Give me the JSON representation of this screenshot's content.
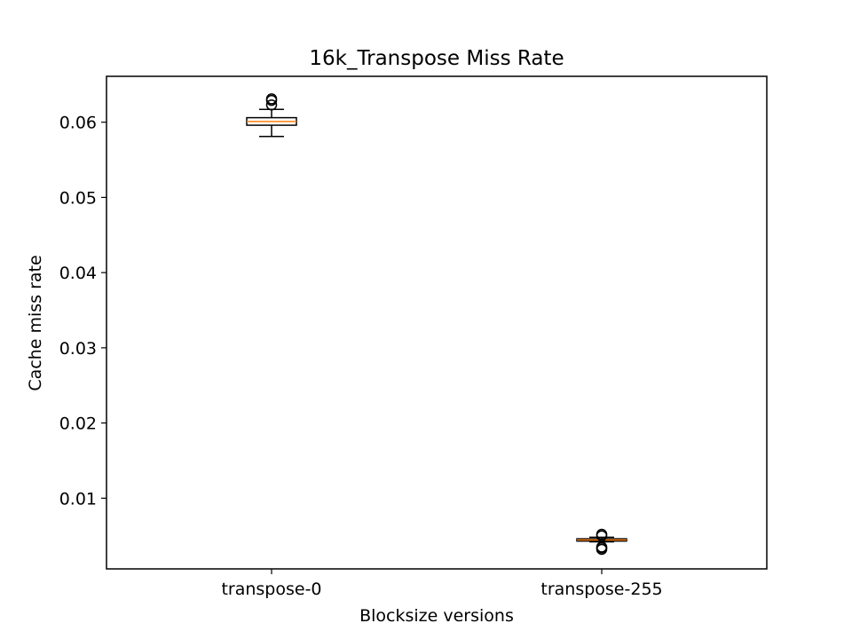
{
  "chart_data": {
    "type": "box",
    "title": "16k_Transpose Miss Rate",
    "xlabel": "Blocksize versions",
    "ylabel": "Cache miss rate",
    "ylim": [
      0.0006,
      0.0661
    ],
    "yticks": [
      0.01,
      0.02,
      0.03,
      0.04,
      0.05,
      0.06
    ],
    "ytick_labels": [
      "0.01",
      "0.02",
      "0.03",
      "0.04",
      "0.05",
      "0.06"
    ],
    "categories": [
      "transpose-0",
      "transpose-255"
    ],
    "boxes": [
      {
        "name": "transpose-0",
        "whisker_low": 0.0581,
        "q1": 0.0596,
        "median": 0.0601,
        "q3": 0.0606,
        "whisker_high": 0.0617,
        "outliers": [
          0.0623,
          0.0629,
          0.0631
        ]
      },
      {
        "name": "transpose-255",
        "whisker_low": 0.0042,
        "q1": 0.0043,
        "median": 0.00445,
        "q3": 0.0046,
        "whisker_high": 0.0048,
        "outliers": [
          0.0032,
          0.0034,
          0.0035,
          0.005,
          0.0052
        ]
      }
    ],
    "grid": false,
    "colors": {
      "box": "#000000",
      "median": "#ff7f0e",
      "outlier": "#000000",
      "axes": "#000000"
    }
  }
}
